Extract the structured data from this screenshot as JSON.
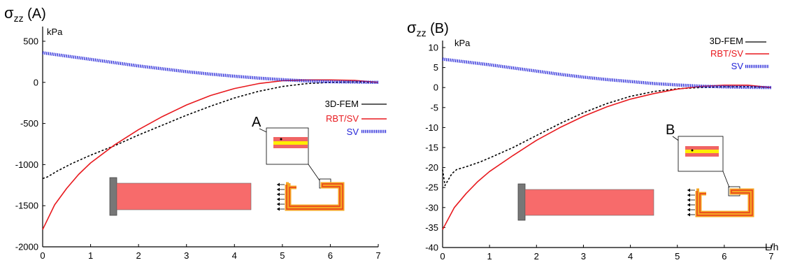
{
  "chart_data": [
    {
      "type": "line",
      "panel_title": "σzz (A)",
      "unit": "kPa",
      "xlim": [
        0,
        7
      ],
      "ylim": [
        -2000,
        500
      ],
      "x_ticks": [
        "0",
        "1",
        "2",
        "3",
        "4",
        "5",
        "6",
        "7"
      ],
      "y_ticks": [
        "500",
        "0",
        "-500",
        "-1000",
        "-1500",
        "-2000"
      ],
      "y_tick_values": [
        500,
        0,
        -500,
        -1000,
        -1500,
        -2000
      ],
      "legend": [
        {
          "name": "3D-FEM",
          "color": "#000000",
          "style": "dashed"
        },
        {
          "name": "RBT/SV",
          "color": "#e8191e",
          "style": "solid"
        },
        {
          "name": "SV",
          "color": "#2424d8",
          "style": "dotted"
        }
      ],
      "inset_label": "A",
      "series": [
        {
          "name": "3D-FEM",
          "x": [
            0,
            0.1,
            0.3,
            0.6,
            1,
            1.5,
            2,
            2.5,
            3,
            3.5,
            4,
            4.5,
            5,
            5.5,
            6,
            6.5,
            7
          ],
          "y": [
            -1170,
            -1150,
            -1080,
            -990,
            -885,
            -770,
            -640,
            -520,
            -400,
            -290,
            -190,
            -110,
            -50,
            -15,
            0,
            5,
            0
          ]
        },
        {
          "name": "RBT/SV",
          "x": [
            0,
            0.25,
            0.5,
            0.75,
            1,
            1.5,
            2,
            2.5,
            3,
            3.5,
            4,
            4.5,
            5,
            5.5,
            6,
            6.5,
            7
          ],
          "y": [
            -1790,
            -1490,
            -1290,
            -1120,
            -980,
            -760,
            -575,
            -415,
            -275,
            -160,
            -75,
            -15,
            20,
            30,
            30,
            25,
            0
          ]
        },
        {
          "name": "SV",
          "x": [
            0,
            0.5,
            1,
            1.5,
            2,
            2.5,
            3,
            3.5,
            4,
            4.5,
            5,
            5.5,
            6,
            6.5,
            7
          ],
          "y": [
            360,
            320,
            280,
            240,
            200,
            165,
            130,
            100,
            75,
            52,
            33,
            18,
            8,
            3,
            0
          ]
        }
      ]
    },
    {
      "type": "line",
      "panel_title": "σzz (B)",
      "unit": "kPa",
      "xlabel": "L/h",
      "xlim": [
        0,
        7
      ],
      "ylim": [
        -40,
        10
      ],
      "x_ticks": [
        "0",
        "1",
        "2",
        "3",
        "4",
        "5",
        "6",
        "7"
      ],
      "y_ticks": [
        "10",
        "5",
        "0",
        "-5",
        "-10",
        "-15",
        "-20",
        "-25",
        "-30",
        "-35",
        "-40"
      ],
      "y_tick_values": [
        10,
        5,
        0,
        -5,
        -10,
        -15,
        -20,
        -25,
        -30,
        -35,
        -40
      ],
      "legend": [
        {
          "name": "3D-FEM",
          "color": "#000000",
          "style": "solid-short"
        },
        {
          "name": "RBT/SV",
          "color": "#e8191e",
          "style": "solid"
        },
        {
          "name": "SV",
          "color": "#2424d8",
          "style": "dotted"
        }
      ],
      "inset_label": "B",
      "series": [
        {
          "name": "3D-FEM",
          "x": [
            0,
            0.05,
            0.1,
            0.2,
            0.3,
            0.5,
            0.8,
            1,
            1.5,
            2,
            2.5,
            3,
            3.5,
            4,
            4.5,
            5,
            5.5,
            6,
            6.5,
            7
          ],
          "y": [
            -20.5,
            -24.5,
            -23.5,
            -21.5,
            -20.5,
            -19.8,
            -18.6,
            -17.6,
            -15,
            -12,
            -9,
            -6.3,
            -4,
            -2.2,
            -1,
            -0.3,
            0,
            0.2,
            0.2,
            0
          ]
        },
        {
          "name": "RBT/SV",
          "x": [
            0,
            0.25,
            0.5,
            0.75,
            1,
            1.5,
            2,
            2.5,
            3,
            3.5,
            4,
            4.5,
            5,
            5.5,
            6,
            6.5,
            7
          ],
          "y": [
            -35.5,
            -30,
            -26.5,
            -23.5,
            -21,
            -17,
            -13.2,
            -10,
            -7.2,
            -4.8,
            -2.9,
            -1.5,
            -0.4,
            0.3,
            0.6,
            0.6,
            0
          ]
        },
        {
          "name": "SV",
          "x": [
            0,
            0.5,
            1,
            1.5,
            2,
            2.5,
            3,
            3.5,
            4,
            4.5,
            5,
            5.5,
            6,
            6.5,
            7
          ],
          "y": [
            7.1,
            6.4,
            5.7,
            4.9,
            4.1,
            3.3,
            2.6,
            2.0,
            1.5,
            1.0,
            0.65,
            0.35,
            0.15,
            0.05,
            0
          ]
        }
      ]
    }
  ]
}
